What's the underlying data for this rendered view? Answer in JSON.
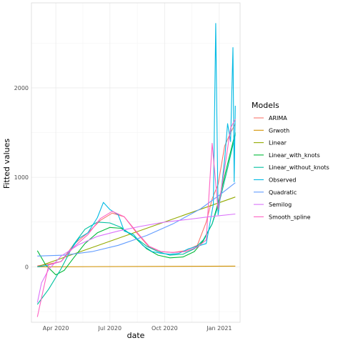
{
  "chart_data": {
    "type": "line",
    "xlabel": "date",
    "ylabel": "Fitted values",
    "x_range": [
      "2020-02-20",
      "2021-02-05"
    ],
    "y_range": [
      -620,
      2950
    ],
    "x_ticks": [
      {
        "date": "2020-04-01",
        "label": "Apr 2020"
      },
      {
        "date": "2020-07-01",
        "label": "Jul 2020"
      },
      {
        "date": "2020-10-01",
        "label": "Oct 2020"
      },
      {
        "date": "2021-01-01",
        "label": "Jan 2021"
      }
    ],
    "y_ticks": [
      0,
      1000,
      2000
    ],
    "grid": true,
    "legend_position": "right",
    "legend_title": "Models",
    "series": [
      {
        "name": "ARIMA",
        "color": "#F8766D",
        "x": [
          "2020-03-01",
          "2020-03-20",
          "2020-04-10",
          "2020-05-01",
          "2020-05-25",
          "2020-06-15",
          "2020-07-05",
          "2020-07-25",
          "2020-08-15",
          "2020-09-05",
          "2020-09-25",
          "2020-10-15",
          "2020-11-05",
          "2020-11-25",
          "2020-12-10",
          "2020-12-20",
          "2020-12-30",
          "2021-01-10",
          "2021-01-20",
          "2021-01-28"
        ],
        "y": [
          10,
          30,
          60,
          250,
          380,
          520,
          600,
          560,
          380,
          220,
          170,
          160,
          180,
          240,
          500,
          760,
          920,
          1350,
          1500,
          1600
        ]
      },
      {
        "name": "Grwoth",
        "color": "#D39200",
        "x": [
          "2020-03-01",
          "2021-01-28"
        ],
        "y": [
          0,
          8
        ]
      },
      {
        "name": "Linear",
        "color": "#93AA00",
        "x": [
          "2020-03-01",
          "2021-01-28"
        ],
        "y": [
          0,
          780
        ]
      },
      {
        "name": "Linear_with_knots",
        "color": "#00BA38",
        "x": [
          "2020-03-01",
          "2020-03-15",
          "2020-04-01",
          "2020-04-15",
          "2020-05-01",
          "2020-05-20",
          "2020-06-10",
          "2020-07-01",
          "2020-07-20",
          "2020-08-10",
          "2020-09-01",
          "2020-09-20",
          "2020-10-10",
          "2020-11-01",
          "2020-11-20",
          "2020-12-05",
          "2020-12-20",
          "2021-01-01",
          "2021-01-15",
          "2021-01-28"
        ],
        "y": [
          180,
          20,
          -90,
          -40,
          100,
          260,
          380,
          440,
          430,
          340,
          200,
          130,
          100,
          110,
          170,
          290,
          480,
          760,
          1150,
          1500
        ]
      },
      {
        "name": "Linear_without_knots",
        "color": "#00C19F",
        "x": [
          "2020-03-01",
          "2020-03-20",
          "2020-04-10",
          "2020-05-01",
          "2020-05-20",
          "2020-06-10",
          "2020-07-01",
          "2020-07-20",
          "2020-08-10",
          "2020-09-01",
          "2020-09-20",
          "2020-10-10",
          "2020-11-01",
          "2020-11-20",
          "2020-12-05",
          "2020-12-20",
          "2021-01-01",
          "2021-01-15",
          "2021-01-28"
        ],
        "y": [
          -420,
          -250,
          -20,
          250,
          420,
          500,
          490,
          440,
          340,
          230,
          170,
          130,
          140,
          200,
          300,
          480,
          720,
          1100,
          1480
        ]
      },
      {
        "name": "Observed",
        "color": "#00B9E3",
        "x": [
          "2020-03-01",
          "2020-03-20",
          "2020-04-10",
          "2020-04-25",
          "2020-05-10",
          "2020-05-25",
          "2020-06-10",
          "2020-06-20",
          "2020-07-01",
          "2020-07-15",
          "2020-07-25",
          "2020-08-10",
          "2020-08-25",
          "2020-09-10",
          "2020-09-25",
          "2020-10-10",
          "2020-10-25",
          "2020-11-10",
          "2020-11-25",
          "2020-12-10",
          "2020-12-22",
          "2020-12-26",
          "2020-12-30",
          "2021-01-05",
          "2021-01-10",
          "2021-01-15",
          "2021-01-20",
          "2021-01-24",
          "2021-01-26",
          "2021-01-28"
        ],
        "y": [
          0,
          20,
          60,
          180,
          320,
          380,
          550,
          720,
          640,
          580,
          400,
          360,
          240,
          170,
          150,
          140,
          150,
          200,
          230,
          260,
          700,
          2720,
          580,
          900,
          1200,
          1600,
          1400,
          2450,
          950,
          1800
        ]
      },
      {
        "name": "Quadratic",
        "color": "#619CFF",
        "x": [
          "2020-03-01",
          "2020-04-15",
          "2020-06-01",
          "2020-07-15",
          "2020-09-01",
          "2020-10-15",
          "2020-12-01",
          "2021-01-01",
          "2021-01-28"
        ],
        "y": [
          120,
          130,
          170,
          240,
          350,
          480,
          650,
          800,
          940
        ]
      },
      {
        "name": "Semilog",
        "color": "#DB72FB",
        "x": [
          "2020-03-01",
          "2020-03-08",
          "2020-03-20",
          "2020-04-10",
          "2020-05-10",
          "2020-06-10",
          "2020-07-15",
          "2020-08-20",
          "2020-10-01",
          "2020-11-10",
          "2020-12-15",
          "2021-01-28"
        ],
        "y": [
          -400,
          -180,
          -30,
          120,
          250,
          340,
          400,
          450,
          500,
          530,
          560,
          590
        ]
      },
      {
        "name": "Smooth_spline",
        "color": "#FF61C3",
        "x": [
          "2020-03-01",
          "2020-03-20",
          "2020-04-10",
          "2020-05-01",
          "2020-05-25",
          "2020-06-15",
          "2020-07-05",
          "2020-07-25",
          "2020-08-15",
          "2020-09-05",
          "2020-09-25",
          "2020-10-15",
          "2020-11-05",
          "2020-11-25",
          "2020-12-10",
          "2020-12-20",
          "2020-12-30",
          "2021-01-10",
          "2021-01-20",
          "2021-01-28"
        ],
        "y": [
          -560,
          20,
          60,
          220,
          360,
          540,
          620,
          560,
          390,
          230,
          170,
          160,
          170,
          220,
          300,
          1380,
          640,
          1100,
          1550,
          1650
        ]
      }
    ]
  }
}
